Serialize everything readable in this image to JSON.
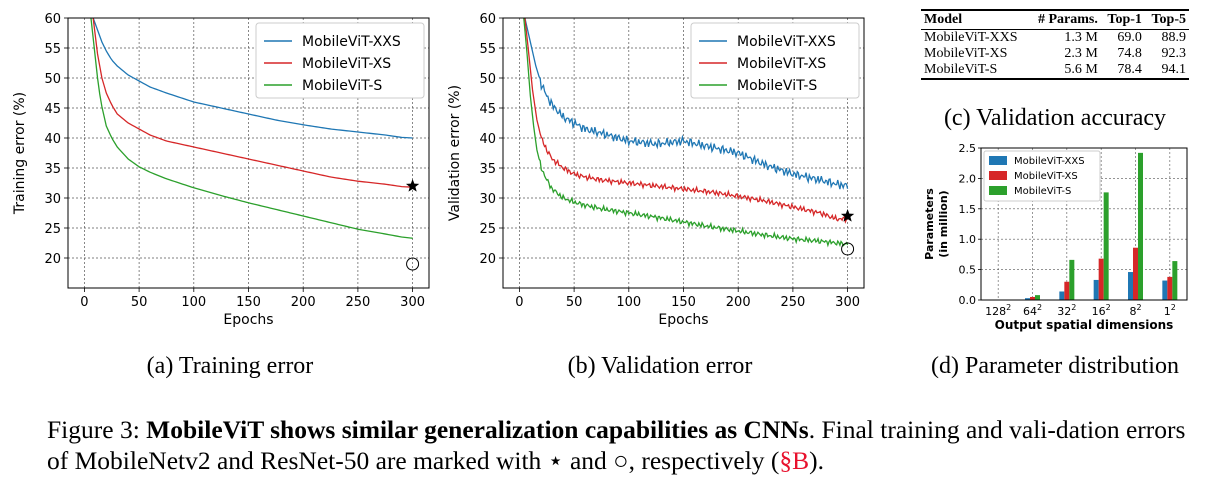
{
  "chart_data": [
    {
      "id": "training",
      "type": "line",
      "xlabel": "Epochs",
      "ylabel": "Training error (%)",
      "xlim": [
        -15,
        315
      ],
      "ylim": [
        15,
        60
      ],
      "xticks": [
        0,
        50,
        100,
        150,
        200,
        250,
        300
      ],
      "yticks": [
        20,
        25,
        30,
        35,
        40,
        45,
        50,
        55,
        60
      ],
      "grid": true,
      "legend": "top-right",
      "series": [
        {
          "name": "MobileViT-XXS",
          "color": "#1f77b4",
          "x": [
            8,
            12,
            16,
            20,
            25,
            30,
            40,
            50,
            60,
            75,
            100,
            125,
            150,
            175,
            200,
            225,
            250,
            275,
            290,
            300
          ],
          "y": [
            60,
            58,
            56,
            54.5,
            53,
            52,
            50.5,
            49.5,
            48.5,
            47.5,
            46,
            45,
            44,
            43,
            42.2,
            41.5,
            41,
            40.5,
            40.1,
            40
          ]
        },
        {
          "name": "MobileViT-XS",
          "color": "#d62728",
          "x": [
            8,
            12,
            16,
            20,
            25,
            30,
            40,
            50,
            60,
            75,
            100,
            125,
            150,
            175,
            200,
            225,
            250,
            275,
            290,
            300
          ],
          "y": [
            60,
            54,
            50,
            47.5,
            45.5,
            44,
            42.5,
            41.5,
            40.5,
            39.5,
            38.5,
            37.5,
            36.5,
            35.5,
            34.5,
            33.5,
            32.8,
            32.3,
            31.9,
            31.8
          ]
        },
        {
          "name": "MobileViT-S",
          "color": "#2ca02c",
          "x": [
            6,
            9,
            12,
            15,
            20,
            25,
            30,
            40,
            50,
            60,
            75,
            100,
            125,
            150,
            175,
            200,
            225,
            250,
            275,
            290,
            300
          ],
          "y": [
            60,
            55,
            50,
            46,
            42,
            40,
            38.5,
            36.5,
            35.2,
            34.3,
            33.2,
            31.7,
            30.4,
            29.2,
            28.1,
            27,
            25.9,
            24.8,
            24,
            23.5,
            23.3
          ]
        }
      ],
      "markers": [
        {
          "shape": "star",
          "x": 300,
          "y": 32
        },
        {
          "shape": "circle",
          "x": 300,
          "y": 19
        }
      ]
    },
    {
      "id": "validation",
      "type": "line",
      "xlabel": "Epochs",
      "ylabel": "Validation error (%)",
      "xlim": [
        -15,
        315
      ],
      "ylim": [
        15,
        60
      ],
      "xticks": [
        0,
        50,
        100,
        150,
        200,
        250,
        300
      ],
      "yticks": [
        20,
        25,
        30,
        35,
        40,
        45,
        50,
        55,
        60
      ],
      "grid": true,
      "legend": "top-right",
      "series": [
        {
          "name": "MobileViT-XXS",
          "color": "#1f77b4",
          "x": [
            5,
            10,
            15,
            20,
            25,
            30,
            40,
            50,
            60,
            75,
            100,
            125,
            150,
            175,
            200,
            225,
            250,
            275,
            290,
            300
          ],
          "y": [
            60,
            56,
            52,
            49,
            47,
            45.5,
            43.5,
            42.5,
            41.5,
            40.8,
            39.5,
            39,
            39.5,
            38.5,
            37.5,
            35.5,
            34,
            33,
            32.3,
            32
          ]
        },
        {
          "name": "MobileViT-XS",
          "color": "#d62728",
          "x": [
            5,
            8,
            12,
            16,
            20,
            25,
            30,
            40,
            50,
            60,
            75,
            100,
            125,
            150,
            175,
            200,
            225,
            250,
            275,
            290,
            300
          ],
          "y": [
            60,
            55,
            48,
            43,
            40,
            38,
            36.5,
            35,
            34,
            33.5,
            33,
            32.5,
            32,
            31.5,
            31,
            30.3,
            29.5,
            28.5,
            27.5,
            26.5,
            26.5
          ]
        },
        {
          "name": "MobileViT-S",
          "color": "#2ca02c",
          "x": [
            4,
            7,
            10,
            13,
            16,
            20,
            25,
            30,
            40,
            50,
            60,
            75,
            100,
            125,
            150,
            175,
            200,
            225,
            250,
            275,
            290,
            300
          ],
          "y": [
            60,
            54,
            47,
            42,
            38,
            35,
            33,
            31.5,
            30,
            29.3,
            28.8,
            28.2,
            27.5,
            26.8,
            26,
            25.2,
            24.5,
            23.8,
            23.2,
            22.8,
            22.5,
            22.3
          ]
        }
      ],
      "markers": [
        {
          "shape": "star",
          "x": 300,
          "y": 27
        },
        {
          "shape": "circle",
          "x": 300,
          "y": 21.5
        }
      ]
    },
    {
      "id": "params",
      "type": "bar",
      "xlabel": "Output spatial dimensions",
      "ylabel": "Parameters\n(in million)",
      "ylim": [
        0,
        2.5
      ],
      "yticks": [
        0.0,
        0.5,
        1.0,
        1.5,
        2.0,
        2.5
      ],
      "categories": [
        "128",
        "64",
        "32",
        "16",
        "8",
        "1"
      ],
      "category_superscript": "2",
      "grid": true,
      "legend": "top-left",
      "series": [
        {
          "name": "MobileViT-XXS",
          "color": "#1f77b4",
          "values": [
            0.0,
            0.03,
            0.14,
            0.33,
            0.46,
            0.32
          ]
        },
        {
          "name": "MobileViT-XS",
          "color": "#d62728",
          "values": [
            0.0,
            0.05,
            0.3,
            0.68,
            0.86,
            0.38
          ]
        },
        {
          "name": "MobileViT-S",
          "color": "#2ca02c",
          "values": [
            0.0,
            0.08,
            0.66,
            1.77,
            2.42,
            0.64
          ]
        }
      ]
    }
  ],
  "table": {
    "headers": [
      "Model",
      "# Params.",
      "Top-1",
      "Top-5"
    ],
    "rows": [
      [
        "MobileViT-XXS",
        "1.3 M",
        "69.0",
        "88.9"
      ],
      [
        "MobileViT-XS",
        "2.3 M",
        "74.8",
        "92.3"
      ],
      [
        "MobileViT-S",
        "5.6 M",
        "78.4",
        "94.1"
      ]
    ]
  },
  "captions": {
    "a": "(a) Training error",
    "b": "(b) Validation error",
    "c": "(c) Validation accuracy",
    "d": "(d) Parameter distribution"
  },
  "figure_caption": {
    "label": "Figure 3: ",
    "bold": "MobileViT shows similar generalization capabilities as CNNs",
    "text1": ". Final training and vali-dation errors of MobileNetv2 and ResNet-50 are marked with ⋆ and ○, respectively (",
    "ref": "§B",
    "text2": ")."
  }
}
